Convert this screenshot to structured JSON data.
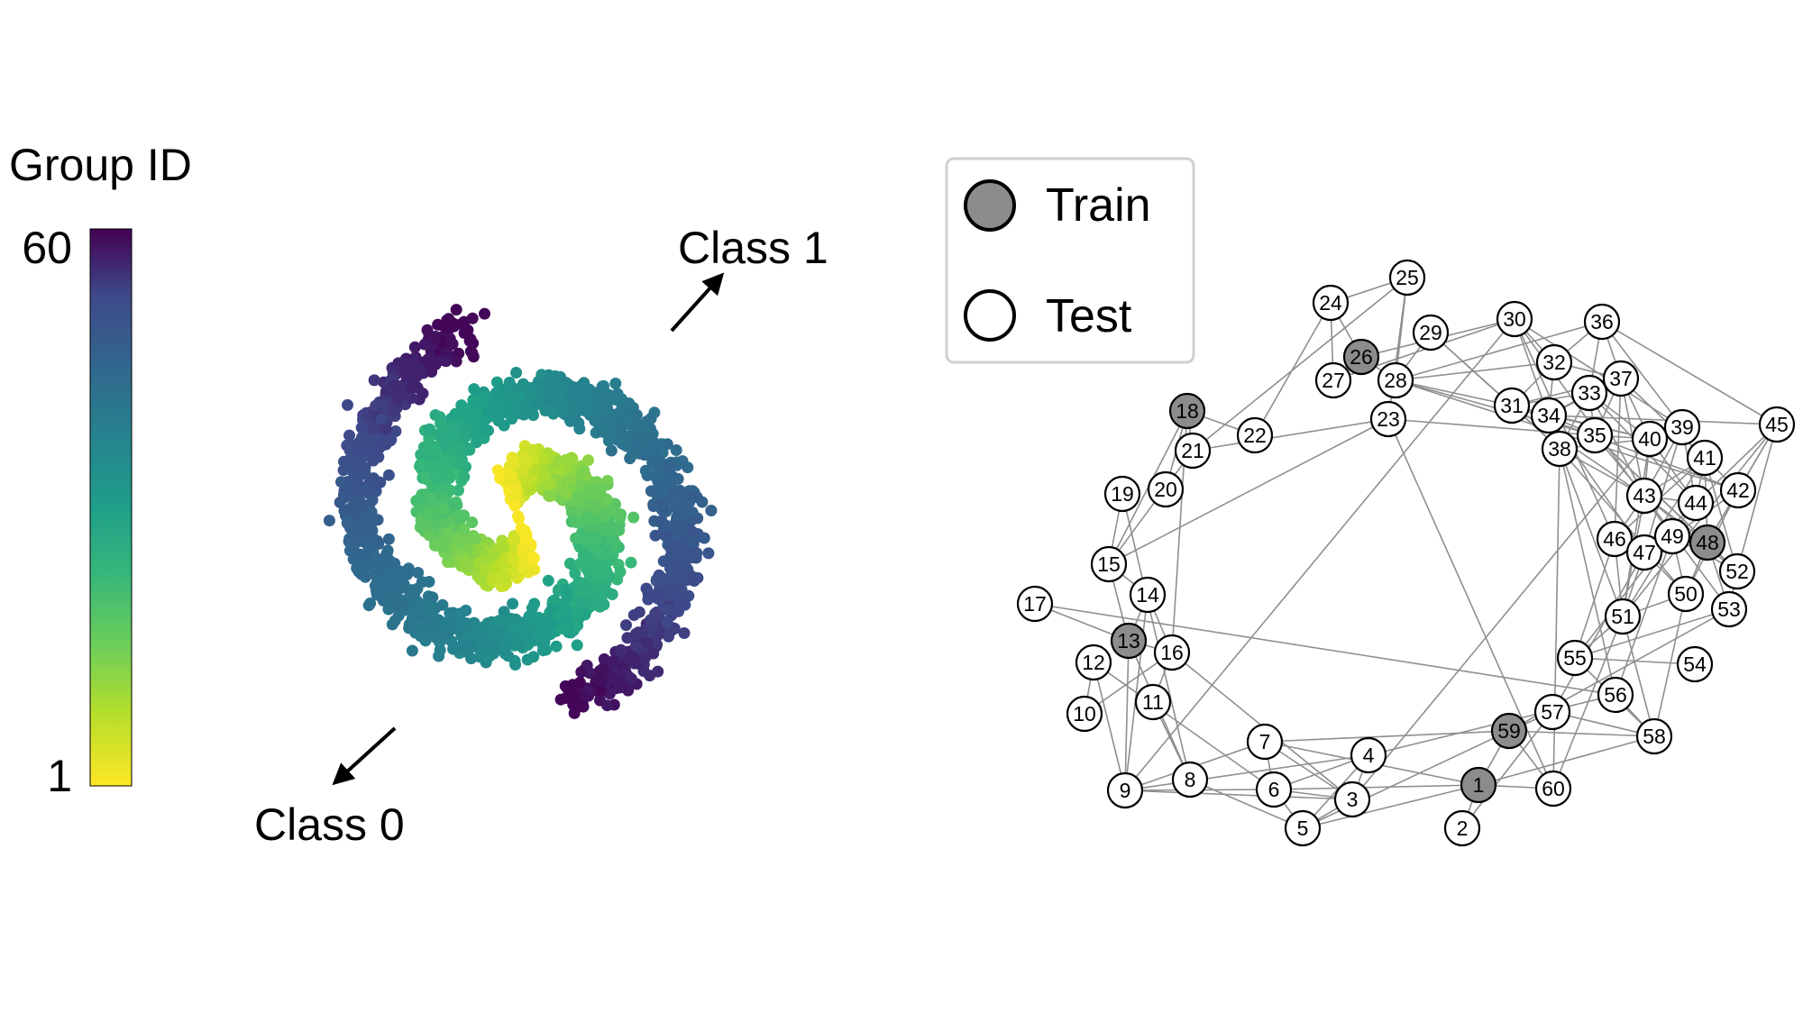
{
  "colorbar": {
    "title": "Group ID",
    "max_label": "60",
    "min_label": "1",
    "min": 1,
    "max": 60,
    "colormap": "viridis (reversed: 1 = yellow, 60 = dark purple)"
  },
  "annotations": {
    "class1": "Class 1",
    "class0": "Class 0"
  },
  "legend": {
    "train_label": "Train",
    "test_label": "Test",
    "train_color": "#8c8c8c",
    "test_color": "#ffffff"
  },
  "graph": {
    "edge_color": "#8f8f8f",
    "train_nodes": [
      1,
      13,
      18,
      26,
      48,
      59
    ],
    "nodes": [
      "1",
      "2",
      "3",
      "4",
      "5",
      "6",
      "7",
      "8",
      "9",
      "10",
      "11",
      "12",
      "13",
      "14",
      "15",
      "16",
      "17",
      "18",
      "19",
      "20",
      "21",
      "22",
      "23",
      "24",
      "25",
      "26",
      "27",
      "28",
      "29",
      "30",
      "31",
      "32",
      "33",
      "34",
      "35",
      "36",
      "37",
      "38",
      "39",
      "40",
      "41",
      "42",
      "43",
      "44",
      "45",
      "46",
      "47",
      "48",
      "49",
      "50",
      "51",
      "52",
      "53",
      "54",
      "55",
      "56",
      "57",
      "58",
      "59",
      "60"
    ]
  }
}
